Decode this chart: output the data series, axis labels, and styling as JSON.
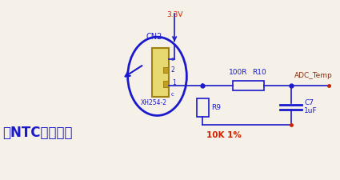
{
  "bg_color": "#f5f0e8",
  "blue": "#1a1acc",
  "red": "#cc2200",
  "brown": "#8B3010",
  "label_ntc": "接NTC热敏电阻",
  "label_r9": "R9",
  "label_10k": "10K 1%",
  "label_100r": "100R",
  "label_r10": "R10",
  "label_c7": "C7",
  "label_1uf": "1uF",
  "label_cn2": "CN2",
  "label_xh": "XH254-2",
  "label_33v": "3.3V",
  "label_adc": "ADC_Temp",
  "conn_face": "#e8d870",
  "conn_edge": "#a08010",
  "pin_face": "#c0a020"
}
